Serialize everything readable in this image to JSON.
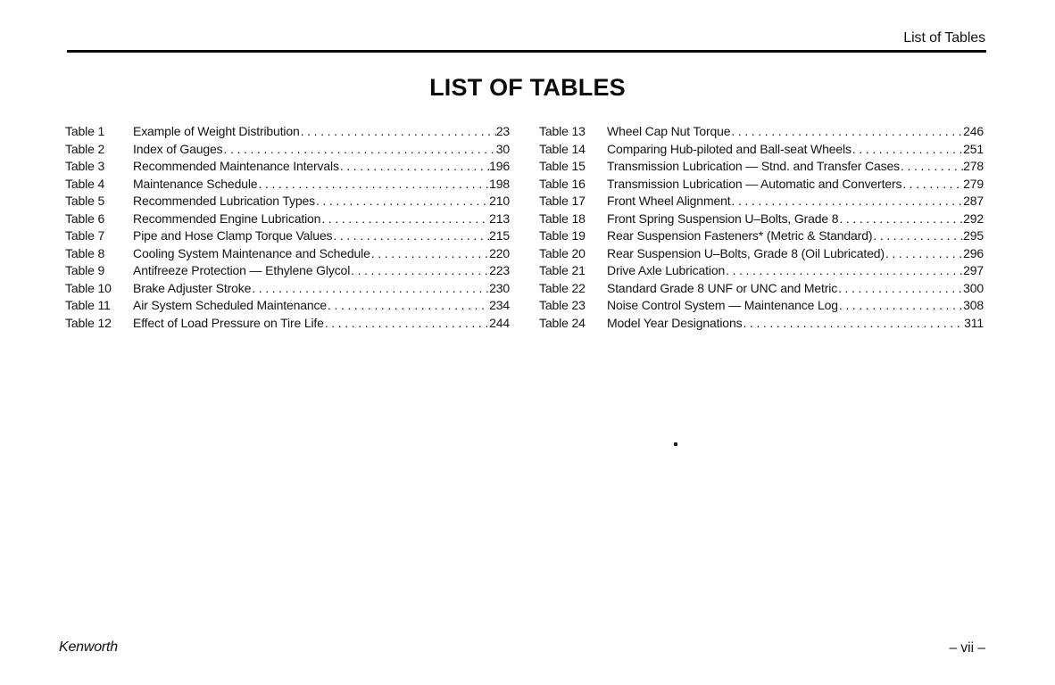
{
  "page": {
    "running_header": "List of Tables",
    "title": "LIST OF TABLES",
    "footer": {
      "brand": "Kenworth",
      "page_number": "– vii –"
    }
  },
  "toc": {
    "left_column": [
      {
        "label": "Table 1",
        "title": "Example of Weight Distribution",
        "page": "23"
      },
      {
        "label": "Table 2",
        "title": "Index of Gauges",
        "page": "30"
      },
      {
        "label": "Table 3",
        "title": "Recommended Maintenance Intervals",
        "page": "196"
      },
      {
        "label": "Table 4",
        "title": "Maintenance Schedule",
        "page": "198"
      },
      {
        "label": "Table 5",
        "title": "Recommended Lubrication Types",
        "page": "210"
      },
      {
        "label": "Table 6",
        "title": "Recommended Engine Lubrication",
        "page": "213"
      },
      {
        "label": "Table 7",
        "title": "Pipe and Hose Clamp Torque Values",
        "page": "215"
      },
      {
        "label": "Table 8",
        "title": "Cooling System Maintenance and Schedule",
        "page": "220"
      },
      {
        "label": "Table 9",
        "title": "Antifreeze Protection — Ethylene Glycol",
        "page": "223"
      },
      {
        "label": "Table 10",
        "title": "Brake Adjuster Stroke",
        "page": "230"
      },
      {
        "label": "Table 11",
        "title": "Air System Scheduled Maintenance",
        "page": "234"
      },
      {
        "label": "Table 12",
        "title": "Effect of Load Pressure on Tire Life",
        "page": "244"
      }
    ],
    "right_column": [
      {
        "label": "Table 13",
        "title": "Wheel Cap Nut Torque",
        "page": "246"
      },
      {
        "label": "Table 14",
        "title": "Comparing Hub-piloted and Ball-seat Wheels",
        "page": "251"
      },
      {
        "label": "Table 15",
        "title": "Transmission Lubrication — Stnd. and Transfer Cases",
        "page": "278"
      },
      {
        "label": "Table 16",
        "title": "Transmission Lubrication — Automatic and Converters",
        "page": "279"
      },
      {
        "label": "Table 17",
        "title": "Front Wheel Alignment",
        "page": "287"
      },
      {
        "label": "Table 18",
        "title": "Front Spring Suspension U–Bolts, Grade 8",
        "page": "292"
      },
      {
        "label": "Table 19",
        "title": "Rear Suspension Fasteners* (Metric & Standard)",
        "page": "295"
      },
      {
        "label": "Table 20",
        "title": "Rear Suspension U–Bolts, Grade 8 (Oil Lubricated)",
        "page": "296"
      },
      {
        "label": "Table 21",
        "title": "Drive Axle Lubrication",
        "page": "297"
      },
      {
        "label": "Table 22",
        "title": "Standard Grade 8 UNF or UNC and Metric",
        "page": "300"
      },
      {
        "label": "Table 23",
        "title": "Noise Control System — Maintenance Log",
        "page": "308"
      },
      {
        "label": "Table 24",
        "title": "Model Year Designations",
        "page": "311"
      }
    ]
  },
  "colors": {
    "ink": "#111111",
    "paper": "#ffffff"
  }
}
